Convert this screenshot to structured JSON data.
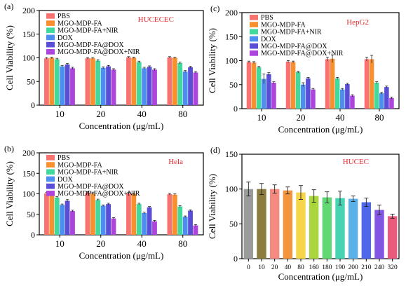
{
  "chart_data": [
    {
      "panel_label": "(a)",
      "type": "bar",
      "corner_label": "HUCECEC",
      "xlabel": "Concentration (μg/mL)",
      "ylabel": "Cell Viability (%)",
      "ylim": [
        0,
        200
      ],
      "yticks": [
        "0",
        "50",
        "100",
        "150",
        "200"
      ],
      "categories": [
        "10",
        "20",
        "40",
        "80"
      ],
      "series": [
        {
          "name": "PBS",
          "values": [
            99,
            99,
            101,
            101
          ]
        },
        {
          "name": "MGO-MDP-FA",
          "values": [
            100,
            99,
            100,
            100
          ]
        },
        {
          "name": "MGO-MDP-FA+NIR",
          "values": [
            97,
            94,
            91,
            89
          ]
        },
        {
          "name": "DOX",
          "values": [
            82,
            79,
            78,
            71
          ]
        },
        {
          "name": "MGO-MDP-FA@DOX",
          "values": [
            86,
            82,
            81,
            80
          ]
        },
        {
          "name": "MGO-MDP-FA@DOX+NIR",
          "values": [
            78,
            75,
            75,
            69
          ]
        }
      ],
      "errors": [
        [
          1.5,
          1.5,
          1.5,
          1.5
        ],
        [
          1.5,
          1.5,
          1.5,
          1.5
        ],
        [
          2,
          2,
          2,
          2
        ],
        [
          2,
          2,
          2,
          2
        ],
        [
          2,
          2,
          2,
          2
        ],
        [
          2,
          2,
          2,
          2
        ]
      ]
    },
    {
      "panel_label": "(b)",
      "type": "bar",
      "corner_label": "Hela",
      "xlabel": "Concentration (μg/mL)",
      "ylabel": "Cell Viability (%)",
      "ylim": [
        0,
        200
      ],
      "yticks": [
        "0",
        "50",
        "100",
        "150",
        "200"
      ],
      "categories": [
        "10",
        "20",
        "40",
        "80"
      ],
      "series": [
        {
          "name": "PBS",
          "values": [
            101,
            103,
            101,
            99
          ]
        },
        {
          "name": "MGO-MDP-FA",
          "values": [
            101,
            101,
            100,
            98
          ]
        },
        {
          "name": "MGO-MDP-FA+NIR",
          "values": [
            91,
            85,
            75,
            69
          ]
        },
        {
          "name": "DOX",
          "values": [
            73,
            71,
            53,
            44
          ]
        },
        {
          "name": "MGO-MDP-FA@DOX",
          "values": [
            83,
            75,
            67,
            59
          ]
        },
        {
          "name": "MGO-MDP-FA@DOX+NIR",
          "values": [
            58,
            40,
            33,
            23
          ]
        }
      ],
      "errors": [
        [
          2,
          2,
          2,
          2
        ],
        [
          2,
          3,
          2,
          2
        ],
        [
          2,
          2,
          2,
          2
        ],
        [
          2,
          2,
          2,
          2
        ],
        [
          3,
          2,
          2,
          2
        ],
        [
          2,
          2,
          2,
          2
        ]
      ]
    },
    {
      "panel_label": "(c)",
      "type": "bar",
      "corner_label": "HepG2",
      "xlabel": "Concentration (μg/mL)",
      "ylabel": "Cell Viability (%)",
      "ylim": [
        0,
        200
      ],
      "yticks": [
        "0",
        "50",
        "100",
        "150",
        "200"
      ],
      "categories": [
        "10",
        "20",
        "40",
        "80"
      ],
      "series": [
        {
          "name": "PBS",
          "values": [
            97,
            98,
            103,
            103
          ]
        },
        {
          "name": "MGO-MDP-FA",
          "values": [
            96,
            97,
            104,
            103
          ]
        },
        {
          "name": "MGO-MDP-FA+NIR",
          "values": [
            86,
            76,
            63,
            54
          ]
        },
        {
          "name": "DOX",
          "values": [
            62,
            50,
            40,
            32
          ]
        },
        {
          "name": "MGO-MDP-FA@DOX",
          "values": [
            72,
            63,
            51,
            45
          ]
        },
        {
          "name": "MGO-MDP-FA@DOX+NIR",
          "values": [
            54,
            40,
            27,
            22
          ]
        }
      ],
      "errors": [
        [
          2,
          2,
          4,
          4
        ],
        [
          2,
          2,
          8,
          8
        ],
        [
          2,
          2,
          2,
          2
        ],
        [
          10,
          4,
          2,
          2
        ],
        [
          3,
          2,
          2,
          2
        ],
        [
          2,
          2,
          2,
          2
        ]
      ]
    },
    {
      "panel_label": "(d)",
      "type": "bar",
      "corner_label": "HUCEC",
      "xlabel": "Concentration (μg/mL)",
      "ylabel": "Cell Viability (%)",
      "ylim": [
        0,
        150
      ],
      "yticks": [
        "0",
        "50",
        "100",
        "150"
      ],
      "categories": [
        "0",
        "10",
        "20",
        "40",
        "80",
        "160",
        "180",
        "190",
        "200",
        "210",
        "240",
        "320"
      ],
      "values": [
        100,
        100,
        100,
        98,
        95,
        90,
        88,
        87,
        86,
        81,
        70,
        61
      ],
      "errors": [
        10,
        8,
        6,
        5,
        10,
        9,
        8,
        10,
        4,
        6,
        7,
        3
      ],
      "bar_colors": [
        "#9b9b9b",
        "#8b7d3e",
        "#f58a80",
        "#f3943e",
        "#f5d64a",
        "#a9d63b",
        "#61d873",
        "#48d4b3",
        "#5ab1e8",
        "#4f67ea",
        "#8255e2",
        "#e95a7d"
      ]
    }
  ],
  "series_colors": [
    "#f8736f",
    "#f8902f",
    "#43d89c",
    "#4d8ef1",
    "#5a4ed6",
    "#ad44dc"
  ],
  "corner_label_color": "#e8262a"
}
